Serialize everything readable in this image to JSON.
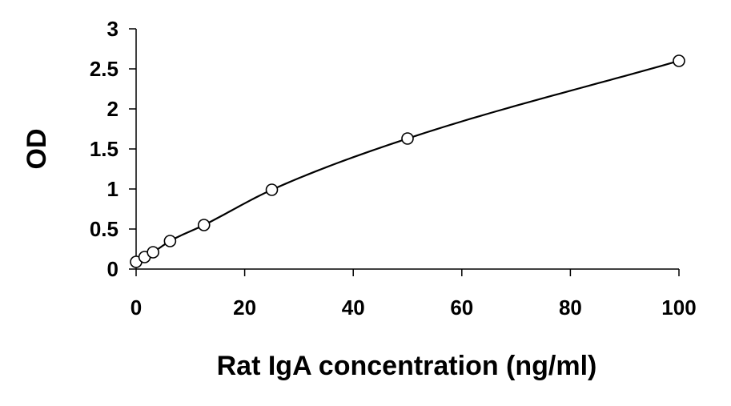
{
  "chart_data": {
    "type": "scatter",
    "title": "",
    "xlabel": "Rat IgA concentration (ng/ml)",
    "ylabel": "OD",
    "xlim": [
      0,
      100
    ],
    "ylim": [
      0,
      3
    ],
    "x_ticks": [
      "0",
      "20",
      "40",
      "60",
      "80",
      "100"
    ],
    "y_ticks": [
      "0",
      "0.5",
      "1",
      "1.5",
      "2",
      "2.5",
      "3"
    ],
    "grid": false,
    "legend": "none",
    "series": [
      {
        "marker": "open-circle",
        "fit_line": "smooth",
        "x": [
          0,
          1.5625,
          3.125,
          6.25,
          12.5,
          25,
          50,
          100
        ],
        "y": [
          0.09,
          0.15,
          0.21,
          0.35,
          0.55,
          0.99,
          1.63,
          2.6
        ]
      }
    ],
    "colors": {
      "line": "#000000",
      "marker": "#000000",
      "axis": "#000000"
    }
  }
}
